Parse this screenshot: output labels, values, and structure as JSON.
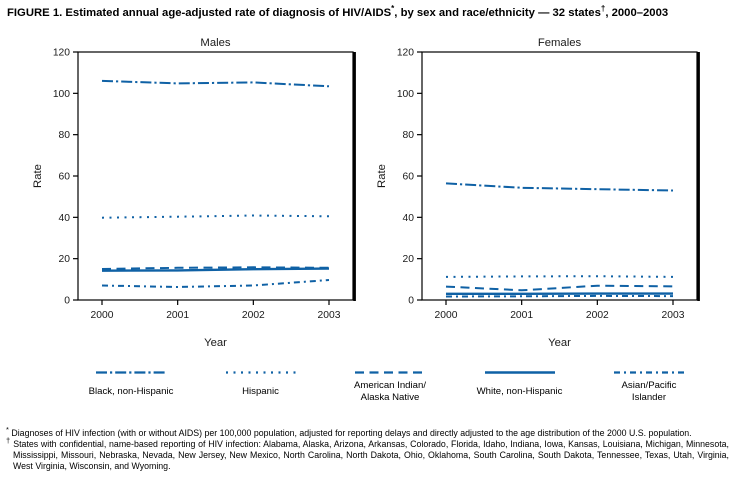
{
  "figure_title": {
    "p1": "FIGURE 1. Estimated annual age-adjusted rate of diagnosis of HIV/AIDS",
    "s1": "*",
    "p2": ", by sex and race/ethnicity — 32 states",
    "s2": "†",
    "p3": ", 2000–2003"
  },
  "colors": {
    "line_blue": "#0f61a5",
    "axis_black": "#000000"
  },
  "legend": [
    {
      "key": "black_nh",
      "lines": [
        "Black, non-Hispanic"
      ]
    },
    {
      "key": "hispanic",
      "lines": [
        "Hispanic"
      ]
    },
    {
      "key": "ai_an",
      "lines": [
        "American Indian/",
        "Alaska Native"
      ]
    },
    {
      "key": "white_nh",
      "lines": [
        "White, non-Hispanic"
      ]
    },
    {
      "key": "api",
      "lines": [
        "Asian/Pacific",
        "Islander"
      ]
    }
  ],
  "chart_data": [
    {
      "type": "line",
      "id": "males",
      "title": "Males",
      "xlabel": "Year",
      "ylabel": "Rate",
      "x": [
        2000,
        2001,
        2002,
        2003
      ],
      "ylim": [
        0,
        120
      ],
      "yticks": [
        0,
        20,
        40,
        60,
        80,
        100,
        120
      ],
      "grid": false,
      "series": [
        {
          "key": "black_nh",
          "name": "Black, non-Hispanic",
          "values": [
            106.0,
            104.8,
            105.3,
            103.4
          ]
        },
        {
          "key": "hispanic",
          "name": "Hispanic",
          "values": [
            39.8,
            40.3,
            40.9,
            40.5
          ]
        },
        {
          "key": "ai_an",
          "name": "American Indian/Alaska Native",
          "values": [
            15.0,
            15.6,
            15.8,
            15.6
          ]
        },
        {
          "key": "white_nh",
          "name": "White, non-Hispanic",
          "values": [
            14.2,
            14.3,
            14.9,
            15.2
          ]
        },
        {
          "key": "api",
          "name": "Asian/Pacific Islander",
          "values": [
            7.0,
            6.3,
            7.0,
            9.7
          ]
        }
      ]
    },
    {
      "type": "line",
      "id": "females",
      "title": "Females",
      "xlabel": "Year",
      "ylabel": "Rate",
      "x": [
        2000,
        2001,
        2002,
        2003
      ],
      "ylim": [
        0,
        120
      ],
      "yticks": [
        0,
        20,
        40,
        60,
        80,
        100,
        120
      ],
      "grid": false,
      "series": [
        {
          "key": "black_nh",
          "name": "Black, non-Hispanic",
          "values": [
            56.4,
            54.3,
            53.6,
            53.0
          ]
        },
        {
          "key": "hispanic",
          "name": "Hispanic",
          "values": [
            11.2,
            11.4,
            11.5,
            11.2
          ]
        },
        {
          "key": "ai_an",
          "name": "American Indian/Alaska Native",
          "values": [
            6.5,
            4.7,
            6.9,
            6.6
          ]
        },
        {
          "key": "white_nh",
          "name": "White, non-Hispanic",
          "values": [
            3.0,
            3.0,
            3.1,
            3.1
          ]
        },
        {
          "key": "api",
          "name": "Asian/Pacific Islander",
          "values": [
            1.7,
            1.8,
            2.0,
            1.9
          ]
        }
      ]
    }
  ],
  "footnotes": [
    {
      "marker": "*",
      "text": "Diagnoses of HIV infection (with or without AIDS) per 100,000 population, adjusted for reporting delays and directly adjusted to the age distribution of the 2000 U.S. population."
    },
    {
      "marker": "†",
      "text": "States with confidential, name-based reporting of HIV infection: Alabama, Alaska, Arizona, Arkansas, Colorado, Florida, Idaho, Indiana, Iowa, Kansas, Louisiana, Michigan, Minnesota, Mississippi, Missouri, Nebraska, Nevada, New Jersey, New Mexico, North Carolina, North Dakota, Ohio, Oklahoma, South Carolina, South Dakota, Tennessee, Texas, Utah, Virginia, West Virginia, Wisconsin, and Wyoming."
    }
  ]
}
